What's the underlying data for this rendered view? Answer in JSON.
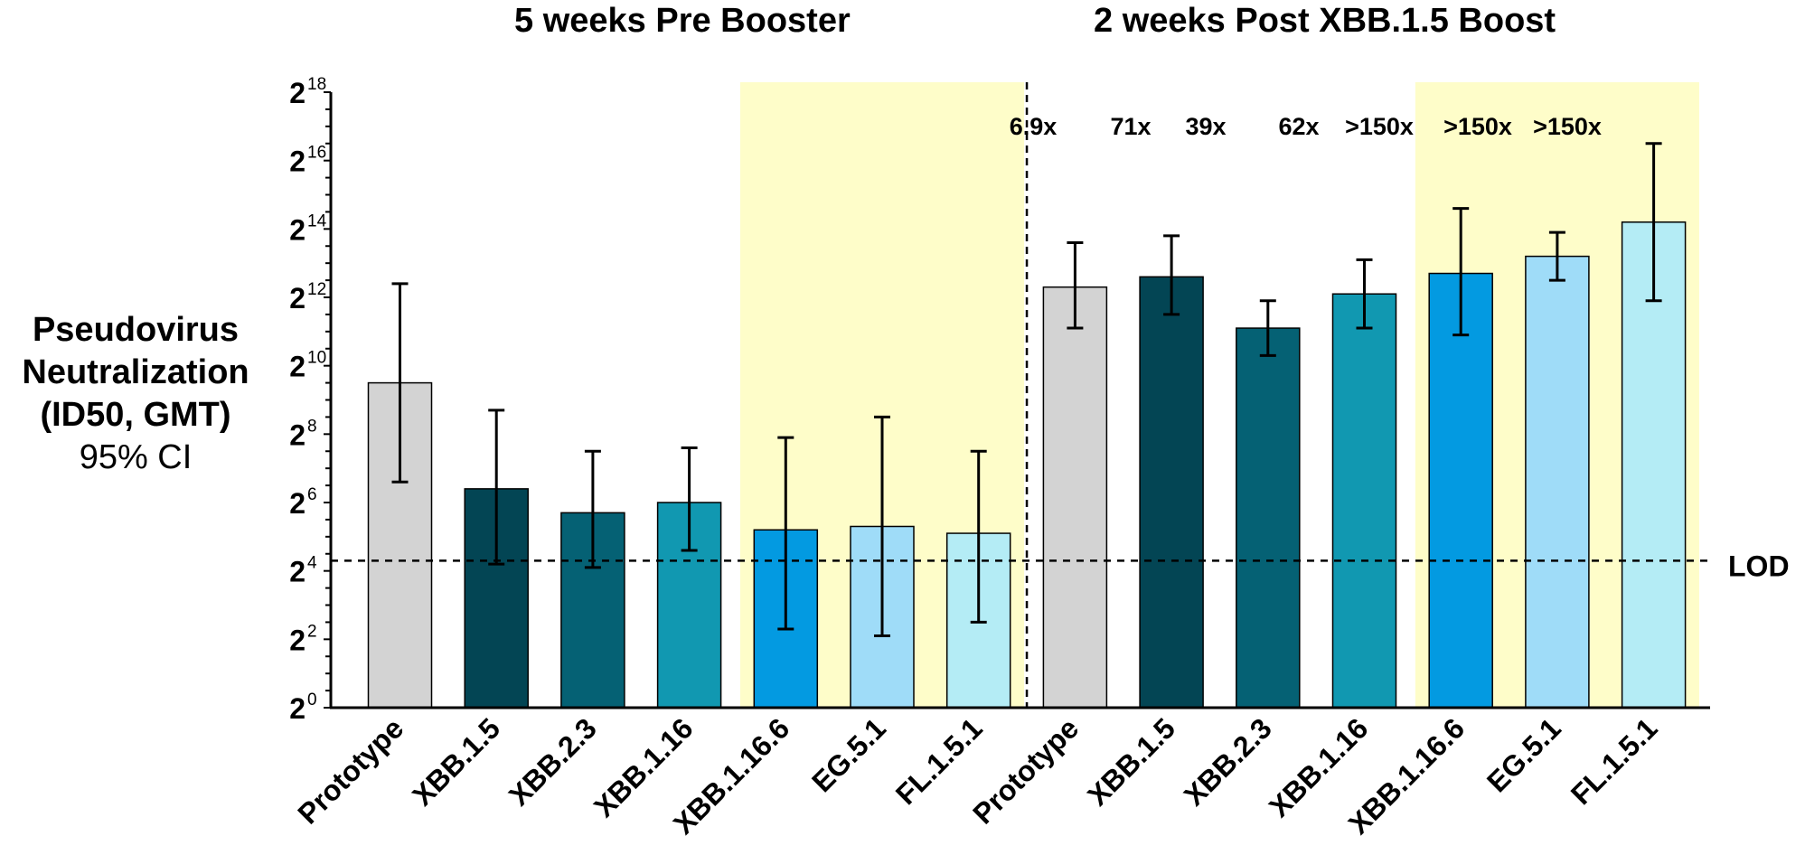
{
  "section_titles": [
    "5 weeks Pre Booster",
    "2 weeks Post XBB.1.5 Boost"
  ],
  "y_axis_label": {
    "lines": [
      "Pseudovirus",
      "Neutralization",
      "(ID50, GMT)"
    ],
    "note": "95% CI"
  },
  "lod_label": "LOD",
  "colors": {
    "Prototype": "#d3d3d3",
    "XBB.1.5": "#034554",
    "XBB.2.3": "#056174",
    "XBB.1.16": "#1198b1",
    "XBB.1.16.6": "#039ae1",
    "EG.5.1": "#9fdcf8",
    "FL.1.5.1": "#b4ecf5",
    "highlight": "#fefdc9"
  },
  "chart_data": {
    "type": "bar",
    "y_scale": "log2",
    "ylim": [
      0,
      18
    ],
    "y_ticks": [
      "0",
      "2",
      "4",
      "6",
      "8",
      "10",
      "12",
      "14",
      "16",
      "18"
    ],
    "y_tick_base": "2",
    "categories": [
      "Prototype",
      "XBB.1.5",
      "XBB.2.3",
      "XBB.1.16",
      "XBB.1.16.6",
      "EG.5.1",
      "FL.1.5.1",
      "Prototype",
      "XBB.1.5",
      "XBB.2.3",
      "XBB.1.16",
      "XBB.1.16.6",
      "EG.5.1",
      "FL.1.5.1"
    ],
    "groups": [
      "5 weeks Pre Booster",
      "2 weeks Post XBB.1.5 Boost"
    ],
    "series": [
      {
        "values": [
          9.5,
          6.4,
          5.7,
          6.0,
          5.2,
          5.3,
          5.1,
          12.3,
          12.6,
          11.1,
          12.1,
          12.7,
          13.2,
          14.2
        ],
        "ci_low": [
          6.6,
          4.2,
          4.1,
          4.6,
          2.3,
          2.1,
          2.5,
          11.1,
          11.5,
          10.3,
          11.1,
          10.9,
          12.5,
          11.9
        ],
        "ci_high": [
          12.4,
          8.7,
          7.5,
          7.6,
          7.9,
          8.5,
          7.5,
          13.6,
          13.8,
          11.9,
          13.1,
          14.6,
          13.9,
          16.5
        ]
      }
    ],
    "fold_changes": [
      "6.9x",
      "71x",
      "39x",
      "62x",
      ">150x",
      ">150x",
      ">150x"
    ],
    "lod": 4.3,
    "highlight_ranges": [
      [
        4,
        6
      ],
      [
        11,
        13
      ]
    ]
  }
}
